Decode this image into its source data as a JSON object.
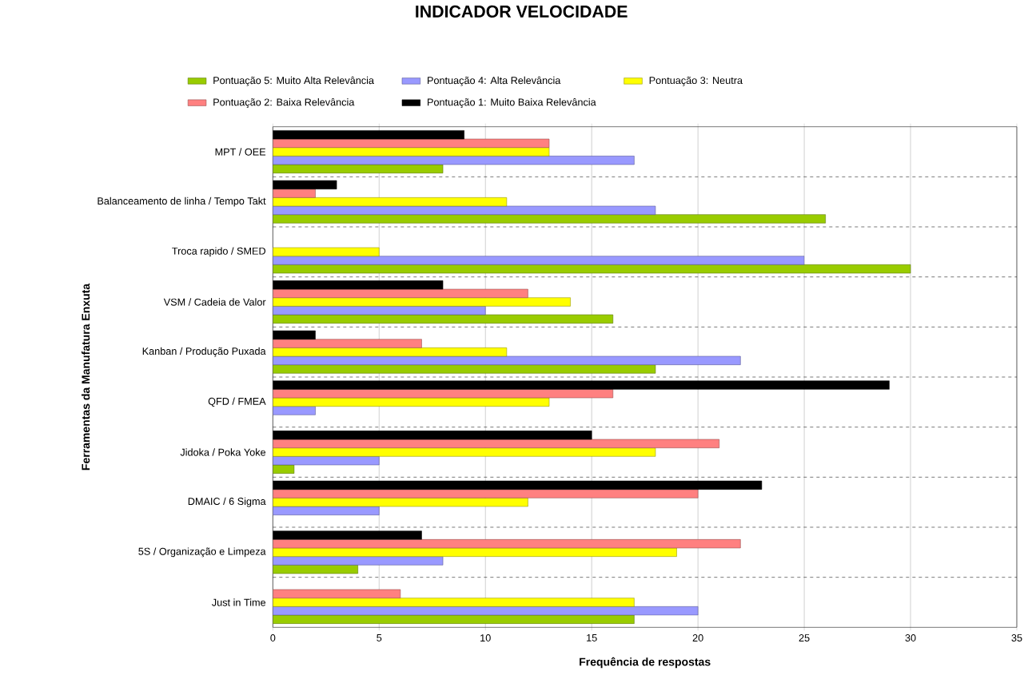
{
  "chart_data": {
    "type": "bar",
    "orientation": "horizontal",
    "title": "INDICADOR VELOCIDADE",
    "xlabel": "Frequência de respostas",
    "ylabel": "Ferramentas da Manufatura Enxuta",
    "categories": [
      "MPT / OEE",
      "Balanceamento de linha / Tempo Takt",
      "Troca rapido / SMED",
      "VSM / Cadeia de Valor",
      "Kanban / Produção Puxada",
      "QFD / FMEA",
      "Jidoka / Poka Yoke",
      "DMAIC / 6 Sigma",
      "5S / Organização e Limpeza",
      "Just in Time"
    ],
    "series": [
      {
        "name": "Pontuação 5: Muito Alta  Relevância",
        "color": "#99cc00",
        "values": [
          8,
          26,
          30,
          16,
          18,
          0,
          1,
          0,
          4,
          17
        ]
      },
      {
        "name": "Pontuação 4: Alta Relevância",
        "color": "#9999ff",
        "values": [
          17,
          18,
          25,
          10,
          22,
          2,
          5,
          5,
          8,
          20
        ]
      },
      {
        "name": "Pontuação 3: Neutra",
        "color": "#ffff00",
        "values": [
          13,
          11,
          5,
          14,
          11,
          13,
          18,
          12,
          19,
          17
        ]
      },
      {
        "name": "Pontuação 2: Baixa Relevância",
        "color": "#ff8080",
        "values": [
          13,
          2,
          0,
          12,
          7,
          16,
          21,
          20,
          22,
          6
        ]
      },
      {
        "name": "Pontuação 1: Muito Baixa Relevância",
        "color": "#000000",
        "values": [
          9,
          3,
          0,
          8,
          2,
          29,
          15,
          23,
          7,
          0
        ]
      }
    ],
    "xlim": [
      0,
      35
    ],
    "xticks": [
      0,
      5,
      10,
      15,
      20,
      25,
      30,
      35
    ],
    "grid": true,
    "legend": "top"
  }
}
